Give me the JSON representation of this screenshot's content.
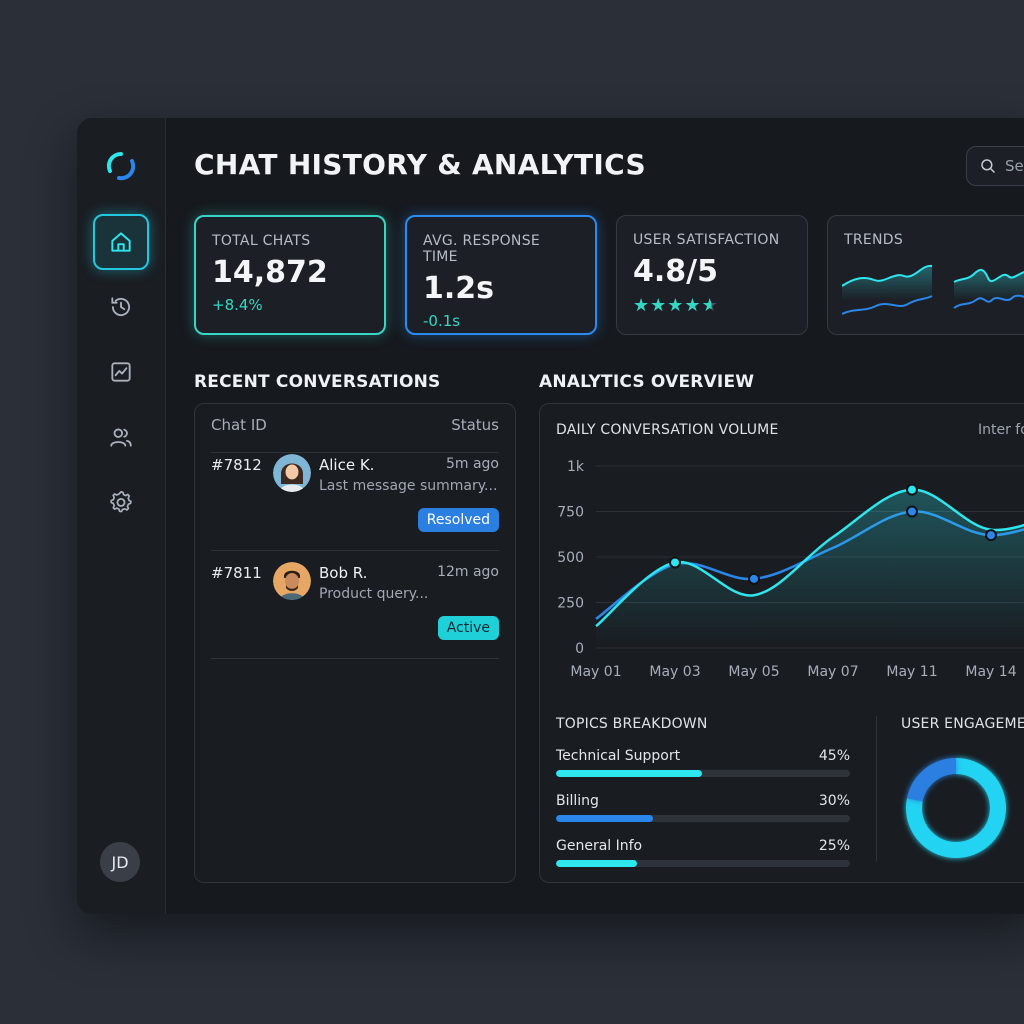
{
  "header": {
    "title": "CHAT HISTORY & ANALYTICS",
    "search_placeholder": "Se"
  },
  "sidebar": {
    "items": [
      {
        "icon": "home-icon",
        "active": true
      },
      {
        "icon": "history-icon",
        "active": false
      },
      {
        "icon": "chart-icon",
        "active": false
      },
      {
        "icon": "users-icon",
        "active": false
      },
      {
        "icon": "gear-icon",
        "active": false
      }
    ],
    "user_initials": "JD"
  },
  "kpis": [
    {
      "label": "TOTAL CHATS",
      "value": "14,872",
      "delta": "+8.4%",
      "accent": "#35d6c3"
    },
    {
      "label": "AVG. RESPONSE TIME",
      "value": "1.2s",
      "delta": "-0.1s",
      "accent": "#2a8af0"
    },
    {
      "label": "USER SATISFACTION",
      "value": "4.8/5",
      "rating": 4.8
    },
    {
      "label": "TRENDS"
    }
  ],
  "recent": {
    "title": "RECENT CONVERSATIONS",
    "col_id": "Chat ID",
    "col_status": "Status",
    "rows": [
      {
        "id": "#7812",
        "name": "Alice K.",
        "time": "5m ago",
        "message": "Last message summary...",
        "status": "Resolved",
        "status_color": "#2a7fe0"
      },
      {
        "id": "#7811",
        "name": "Bob R.",
        "time": "12m ago",
        "message": "Product query...",
        "status": "Active",
        "status_color": "#1fd0d8"
      }
    ]
  },
  "analytics": {
    "title": "ANALYTICS OVERVIEW",
    "chart_title": "DAILY CONVERSATION VOLUME",
    "chart_filter": "Inter fo",
    "topics_title": "TOPICS BREAKDOWN",
    "engagement_title": "USER ENGAGEME",
    "topics": [
      {
        "label": "Technical Support",
        "pct_label": "45%",
        "value": 45,
        "color": "#2ee6ee"
      },
      {
        "label": "Billing",
        "pct_label": "30%",
        "value": 30,
        "color": "#2a86ea"
      },
      {
        "label": "General Info",
        "pct_label": "25%",
        "value": 25,
        "color": "#2ee6ee"
      }
    ],
    "engagement": {
      "segments": [
        0.78,
        0.22
      ],
      "colors": [
        "#21d3f2",
        "#2a7fe0"
      ]
    }
  },
  "chart_data": {
    "type": "line",
    "title": "DAILY CONVERSATION VOLUME",
    "ylim": [
      0,
      1000
    ],
    "yticks": [
      "0",
      "250",
      "500",
      "750",
      "1k"
    ],
    "ytick_values": [
      0,
      250,
      500,
      750,
      1000
    ],
    "x": [
      "May 01",
      "May 03",
      "May 05",
      "May 07",
      "May 11",
      "May 14"
    ],
    "series": [
      {
        "values": [
          120,
          470,
          290,
          610,
          870,
          650
        ],
        "color": "#2ee6ee"
      },
      {
        "values": [
          160,
          460,
          380,
          550,
          750,
          620
        ],
        "color": "#2a86ea"
      }
    ]
  }
}
